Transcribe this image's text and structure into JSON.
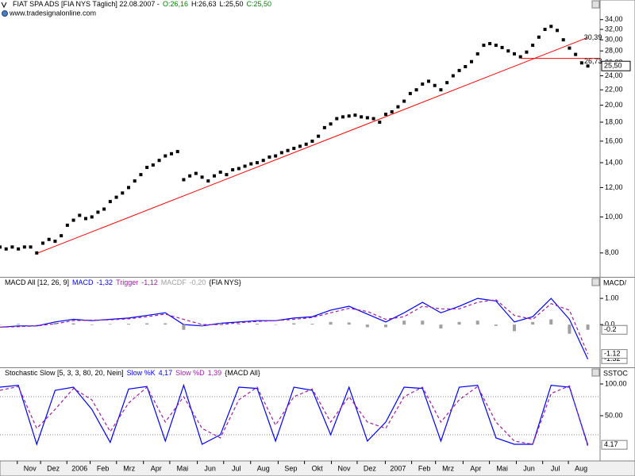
{
  "chart_data": [
    {
      "type": "scatter",
      "title": "FIAT SPA ADS [FIA NYS  Täglich] 22.08.2007 -",
      "quote": [
        "O:26,16",
        "H:26,63",
        "L:25,50",
        "C:25,50"
      ],
      "source": "www.tradesignalonline.com",
      "log": true,
      "color": "#000000",
      "x": [
        0,
        1,
        2,
        3,
        4,
        5,
        6,
        7,
        8,
        9,
        10,
        11,
        12,
        13,
        14,
        15,
        16,
        17,
        18,
        19,
        20,
        21,
        22,
        23,
        24,
        25,
        26,
        27,
        28,
        29,
        30,
        31,
        32,
        33,
        34,
        35,
        36,
        37,
        38,
        39,
        40,
        41,
        42,
        43,
        44,
        45,
        46,
        47,
        48,
        49,
        50,
        51,
        52,
        53,
        54,
        55,
        56,
        57,
        58,
        59,
        60,
        61,
        62,
        63,
        64,
        65,
        66,
        67,
        68,
        69,
        70,
        71,
        72,
        73,
        74,
        75,
        76,
        77,
        78,
        79,
        80,
        81,
        82,
        83,
        84,
        85,
        86,
        87,
        88,
        89,
        90,
        91,
        92,
        93,
        94,
        95,
        96
      ],
      "values": [
        8.3,
        8.2,
        8.3,
        8.2,
        8.3,
        8.3,
        8.0,
        8.5,
        8.7,
        8.6,
        8.9,
        9.5,
        9.8,
        10.1,
        9.9,
        10.0,
        10.3,
        10.5,
        11.0,
        11.3,
        11.6,
        12.0,
        12.5,
        13.0,
        13.6,
        13.8,
        14.2,
        14.6,
        14.8,
        15.0,
        12.6,
        12.9,
        13.1,
        12.8,
        12.5,
        12.9,
        13.2,
        13.0,
        13.4,
        13.5,
        13.7,
        13.9,
        14.0,
        14.2,
        14.5,
        14.6,
        14.9,
        15.1,
        15.3,
        15.5,
        15.7,
        16.0,
        16.5,
        17.4,
        17.8,
        18.4,
        18.6,
        18.7,
        18.8,
        18.6,
        18.5,
        18.4,
        18.0,
        18.9,
        19.2,
        19.8,
        20.5,
        21.5,
        22.0,
        22.8,
        23.2,
        22.6,
        22.0,
        23.0,
        24.0,
        24.8,
        25.4,
        26.2,
        27.5,
        29.0,
        29.3,
        29.0,
        28.6,
        28.0,
        27.5,
        27.0,
        27.8,
        29.0,
        30.5,
        32.0,
        32.6,
        31.8,
        30.0,
        28.5,
        27.4,
        26.0,
        25.5
      ],
      "current": {
        "value": 25.5,
        "label": "25,50"
      },
      "trendline": {
        "x": [
          6.2,
          95.9
        ],
        "values": [
          8.0,
          30.39
        ],
        "label": "30,39",
        "color": "#ff0000"
      },
      "hline": {
        "x": [
          85,
          98
        ],
        "value": 26.73,
        "label": "26,73",
        "color": "#ff0000"
      },
      "xlim": [
        0,
        98
      ],
      "ylim": [
        6.93,
        36.2
      ],
      "yticks": [
        {
          "value": 8,
          "label": "8,00"
        },
        {
          "value": 10,
          "label": "10,00"
        },
        {
          "value": 12,
          "label": "12,00"
        },
        {
          "value": 14,
          "label": "14,00"
        },
        {
          "value": 16,
          "label": "16,00"
        },
        {
          "value": 18,
          "label": "18,00"
        },
        {
          "value": 20,
          "label": "20,00"
        },
        {
          "value": 22,
          "label": "22,00"
        },
        {
          "value": 24,
          "label": "24,00"
        },
        {
          "value": 26,
          "label": "26,00"
        },
        {
          "value": 28,
          "label": "28,00"
        },
        {
          "value": 30,
          "label": "30,00"
        },
        {
          "value": 32,
          "label": "32,00"
        },
        {
          "value": 34,
          "label": "34,00"
        }
      ],
      "xticks": [
        {
          "value": 4.9,
          "label": "Nov"
        },
        {
          "value": 8.7,
          "label": "Dez"
        },
        {
          "value": 13,
          "label": "2006"
        },
        {
          "value": 16.8,
          "label": "Feb"
        },
        {
          "value": 21.1,
          "label": "Mrz"
        },
        {
          "value": 25.5,
          "label": "Apr"
        },
        {
          "value": 29.8,
          "label": "Mai"
        },
        {
          "value": 34.3,
          "label": "Jun"
        },
        {
          "value": 38.6,
          "label": "Jul"
        },
        {
          "value": 43,
          "label": "Aug"
        },
        {
          "value": 47.5,
          "label": "Sep"
        },
        {
          "value": 51.8,
          "label": "Okt"
        },
        {
          "value": 56.2,
          "label": "Nov"
        },
        {
          "value": 60.4,
          "label": "Dez"
        },
        {
          "value": 65,
          "label": "2007"
        },
        {
          "value": 69.3,
          "label": "Feb"
        },
        {
          "value": 73.2,
          "label": "Mrz"
        },
        {
          "value": 77.7,
          "label": "Apr"
        },
        {
          "value": 82,
          "label": "Mai"
        },
        {
          "value": 86.4,
          "label": "Jun"
        },
        {
          "value": 90.7,
          "label": "Jul"
        },
        {
          "value": 94.9,
          "label": "Aug"
        }
      ]
    },
    {
      "type": "line",
      "title": "MACD All [12, 26, 9]",
      "source": "{FIA NYS}",
      "axis_label": "MACD/",
      "x": [
        0,
        3,
        6,
        9,
        12,
        15,
        18,
        21,
        24,
        27,
        30,
        33,
        36,
        39,
        42,
        45,
        48,
        51,
        54,
        57,
        60,
        63,
        66,
        69,
        72,
        75,
        78,
        81,
        84,
        87,
        90,
        93,
        96
      ],
      "series": [
        {
          "name": "MACD",
          "header_value": "-1,32",
          "last_label": "-1.32",
          "color": "#0000ff",
          "kind": "line",
          "values": [
            -0.1,
            -0.05,
            -0.05,
            0.1,
            0.2,
            0.15,
            0.2,
            0.25,
            0.35,
            0.45,
            0.0,
            -0.05,
            0.05,
            0.1,
            0.15,
            0.15,
            0.25,
            0.3,
            0.55,
            0.7,
            0.4,
            0.1,
            0.45,
            0.85,
            0.45,
            0.7,
            1.0,
            0.9,
            0.1,
            0.3,
            1.0,
            0.2,
            -1.32
          ]
        },
        {
          "name": "Trigger",
          "header_value": "-1,12",
          "last_label": "-1.12",
          "color": "#9c1fa0",
          "kind": "dashed",
          "values": [
            -0.1,
            -0.08,
            -0.05,
            0.03,
            0.15,
            0.17,
            0.18,
            0.22,
            0.3,
            0.4,
            0.2,
            0.0,
            0.0,
            0.07,
            0.12,
            0.15,
            0.2,
            0.27,
            0.45,
            0.62,
            0.5,
            0.2,
            0.3,
            0.7,
            0.6,
            0.6,
            0.85,
            0.95,
            0.35,
            0.2,
            0.8,
            0.55,
            -1.12
          ]
        },
        {
          "name": "MACDF",
          "header_value": "-0,20",
          "last_label": "-0.2",
          "color": "#a0a0a0",
          "kind": "bar",
          "values": [
            0,
            0.03,
            0,
            0.07,
            0.05,
            -0.02,
            0.02,
            0.03,
            0.05,
            0.05,
            -0.2,
            -0.05,
            0.05,
            0.03,
            0.03,
            0,
            0.05,
            0.03,
            0.1,
            0.08,
            -0.1,
            -0.1,
            0.15,
            0.15,
            -0.15,
            0.1,
            0.15,
            -0.05,
            -0.25,
            0.1,
            0.2,
            -0.35,
            -0.2
          ]
        }
      ],
      "xlim": [
        0,
        98
      ],
      "ylim": [
        -1.6,
        1.79
      ],
      "yticks": [
        {
          "value": 1,
          "label": "1.00"
        },
        {
          "value": 0,
          "label": "0.0"
        }
      ]
    },
    {
      "type": "line",
      "title": "Stochastic Slow [5, 3, 3, 80, 20, Nein]",
      "source": "{MACD All}",
      "axis_label": "SSTOC",
      "levels": [
        80,
        20
      ],
      "x": [
        0,
        3,
        6,
        9,
        12,
        15,
        18,
        21,
        24,
        27,
        30,
        33,
        36,
        39,
        42,
        45,
        48,
        51,
        54,
        57,
        60,
        63,
        66,
        69,
        72,
        75,
        78,
        81,
        84,
        87,
        90,
        93,
        96
      ],
      "series": [
        {
          "name": "Slow %K",
          "header_value": "4,17",
          "last_label": "4.17",
          "color": "#0000ff",
          "kind": "line",
          "values": [
            95,
            98,
            5,
            90,
            95,
            60,
            8,
            92,
            96,
            10,
            98,
            5,
            20,
            95,
            93,
            10,
            95,
            90,
            20,
            95,
            10,
            40,
            95,
            93,
            10,
            95,
            98,
            15,
            5,
            5,
            98,
            95,
            4.17
          ]
        },
        {
          "name": "Slow %D",
          "header_value": "1,39",
          "color": "#9c1fa0",
          "kind": "dashed",
          "values": [
            90,
            96,
            30,
            60,
            93,
            75,
            25,
            70,
            95,
            40,
            80,
            30,
            15,
            75,
            95,
            35,
            80,
            92,
            40,
            80,
            40,
            30,
            80,
            95,
            40,
            75,
            96,
            40,
            10,
            5,
            85,
            97,
            1.39
          ]
        }
      ],
      "xlim": [
        0,
        98
      ],
      "ylim": [
        -20,
        125
      ],
      "yticks": [
        {
          "value": 100,
          "label": "100.00"
        },
        {
          "value": 50,
          "label": "50.00"
        }
      ]
    }
  ]
}
